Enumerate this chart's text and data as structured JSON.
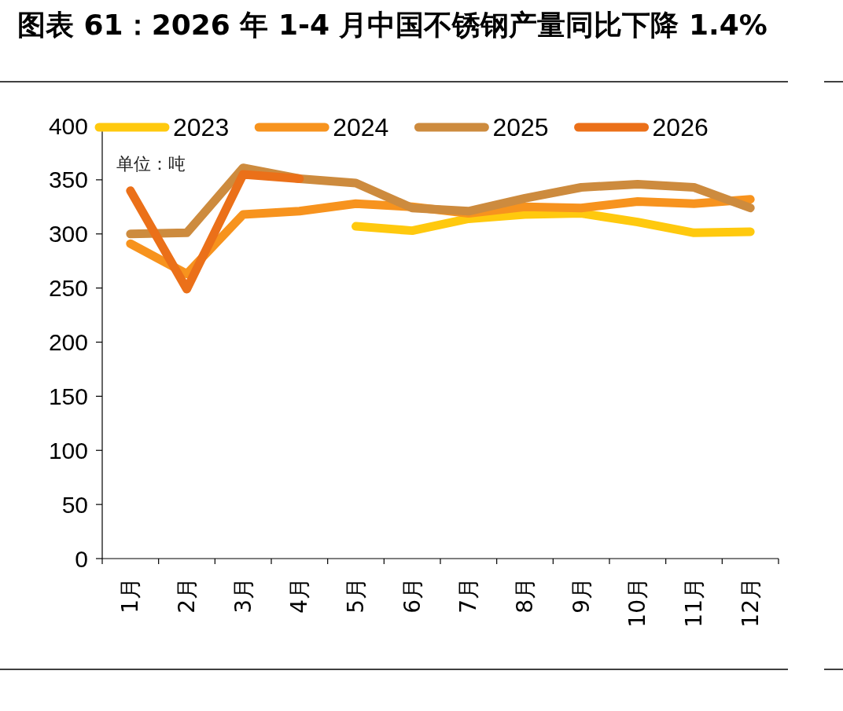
{
  "chart_data": {
    "type": "line",
    "title": "图表 61：2026 年 1-4 月中国不锈钢产量同比下降 1.4%",
    "annotations": [
      "单位：吨"
    ],
    "categories": [
      "1月",
      "2月",
      "3月",
      "4月",
      "5月",
      "6月",
      "7月",
      "8月",
      "9月",
      "10月",
      "11月",
      "12月"
    ],
    "series": [
      {
        "name": "2023",
        "color": "#ffc90e",
        "values": [
          null,
          null,
          null,
          null,
          307,
          303,
          314,
          318,
          319,
          311,
          301,
          302
        ]
      },
      {
        "name": "2024",
        "color": "#f7931e",
        "values": [
          291,
          263,
          318,
          321,
          328,
          325,
          319,
          325,
          324,
          330,
          328,
          332
        ]
      },
      {
        "name": "2025",
        "color": "#cd8b3e",
        "values": [
          300,
          301,
          361,
          351,
          347,
          324,
          321,
          333,
          343,
          346,
          343,
          324
        ]
      },
      {
        "name": "2026",
        "color": "#eb7019",
        "values": [
          340,
          249,
          355,
          351,
          null,
          null,
          null,
          null,
          null,
          null,
          null,
          null
        ]
      }
    ],
    "ylim": [
      0,
      400
    ],
    "yticks": [
      0,
      50,
      100,
      150,
      200,
      250,
      300,
      350,
      400
    ],
    "grid": false,
    "legend": "top",
    "marker": "none",
    "line_style": "solid"
  }
}
